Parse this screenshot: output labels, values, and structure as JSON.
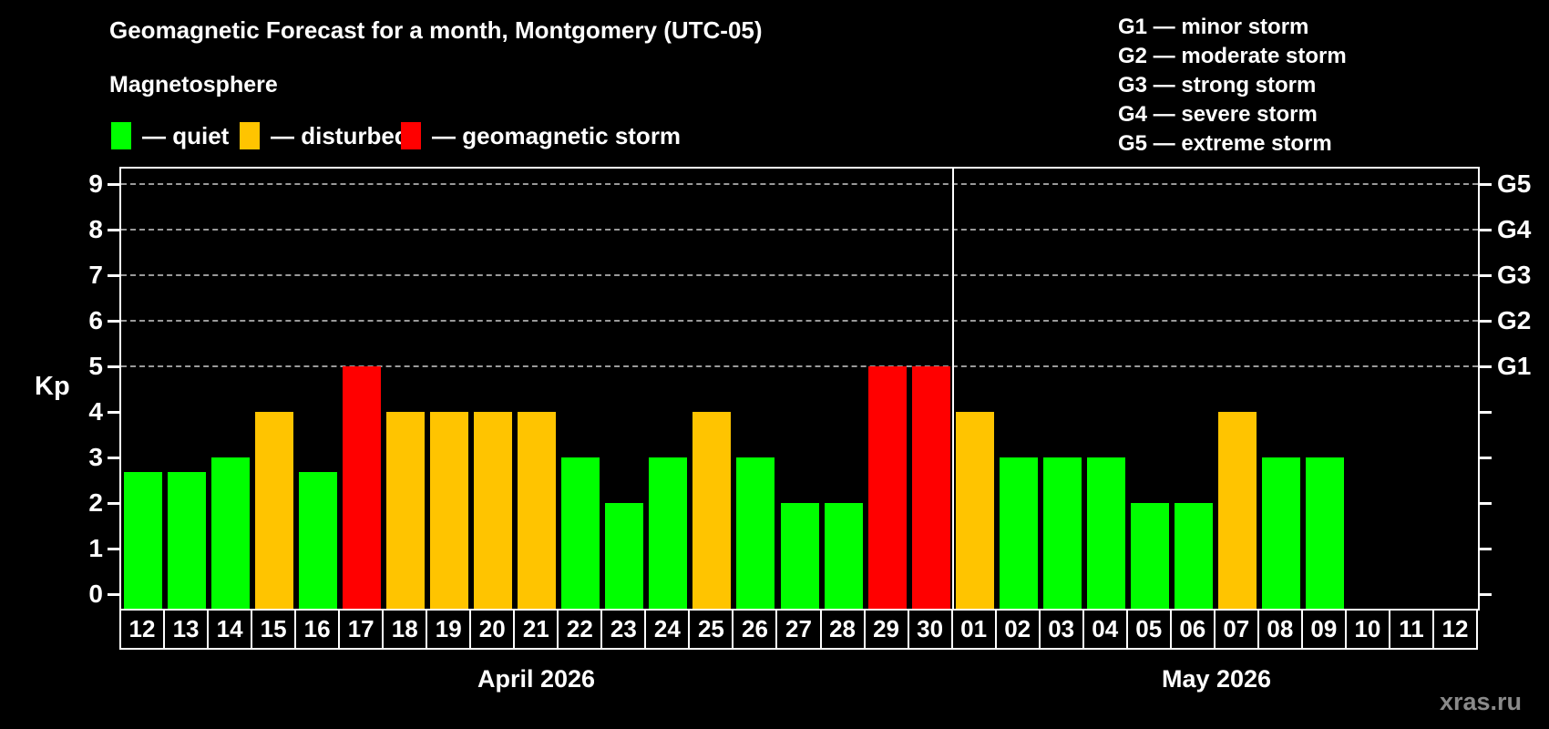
{
  "title": "Geomagnetic Forecast for a month, Montgomery (UTC-05)",
  "legend": {
    "heading": "Magnetosphere",
    "items": [
      {
        "key": "quiet",
        "label": "— quiet",
        "color": "#00ff00"
      },
      {
        "key": "disturbed",
        "label": "— disturbed",
        "color": "#ffc400"
      },
      {
        "key": "storm",
        "label": "— geomagnetic storm",
        "color": "#ff0000"
      }
    ]
  },
  "g_scale_legend": {
    "lines": [
      "G1 — minor storm",
      "G2 — moderate storm",
      "G3 — strong storm",
      "G4 — severe storm",
      "G5 — extreme storm"
    ]
  },
  "watermark": "xras.ru",
  "chart_data": {
    "type": "bar",
    "title": "Geomagnetic Forecast for a month, Montgomery (UTC-05)",
    "ylabel": "Kp",
    "ylim": [
      -0.35,
      9.35
    ],
    "yticks": [
      0,
      1,
      2,
      3,
      4,
      5,
      6,
      7,
      8,
      9
    ],
    "gridline_levels": [
      5,
      6,
      7,
      8,
      9
    ],
    "right_axis": [
      {
        "kp": 5,
        "label": "G1"
      },
      {
        "kp": 6,
        "label": "G2"
      },
      {
        "kp": 7,
        "label": "G3"
      },
      {
        "kp": 8,
        "label": "G4"
      },
      {
        "kp": 9,
        "label": "G5"
      }
    ],
    "grid": "dashed horizontal at storm levels only",
    "legend_position": "top-left",
    "colors": {
      "quiet": "#00ff00",
      "disturbed": "#ffc400",
      "storm": "#ff0000"
    },
    "months": [
      {
        "label": "April 2026",
        "days": [
          "12",
          "13",
          "14",
          "15",
          "16",
          "17",
          "18",
          "19",
          "20",
          "21",
          "22",
          "23",
          "24",
          "25",
          "26",
          "27",
          "28",
          "29",
          "30"
        ],
        "values": [
          2.67,
          2.67,
          3,
          4,
          2.67,
          5,
          4,
          4,
          4,
          4,
          3,
          2,
          3,
          4,
          3,
          2,
          2,
          5,
          5
        ],
        "status": [
          "quiet",
          "quiet",
          "quiet",
          "disturbed",
          "quiet",
          "storm",
          "disturbed",
          "disturbed",
          "disturbed",
          "disturbed",
          "quiet",
          "quiet",
          "quiet",
          "disturbed",
          "quiet",
          "quiet",
          "quiet",
          "storm",
          "storm"
        ]
      },
      {
        "label": "May 2026",
        "days": [
          "01",
          "02",
          "03",
          "04",
          "05",
          "06",
          "07",
          "08",
          "09",
          "10",
          "11",
          "12"
        ],
        "values": [
          4,
          3,
          3,
          3,
          2,
          2,
          4,
          3,
          3,
          null,
          null,
          null
        ],
        "status": [
          "disturbed",
          "quiet",
          "quiet",
          "quiet",
          "quiet",
          "quiet",
          "disturbed",
          "quiet",
          "quiet",
          null,
          null,
          null
        ]
      }
    ]
  }
}
